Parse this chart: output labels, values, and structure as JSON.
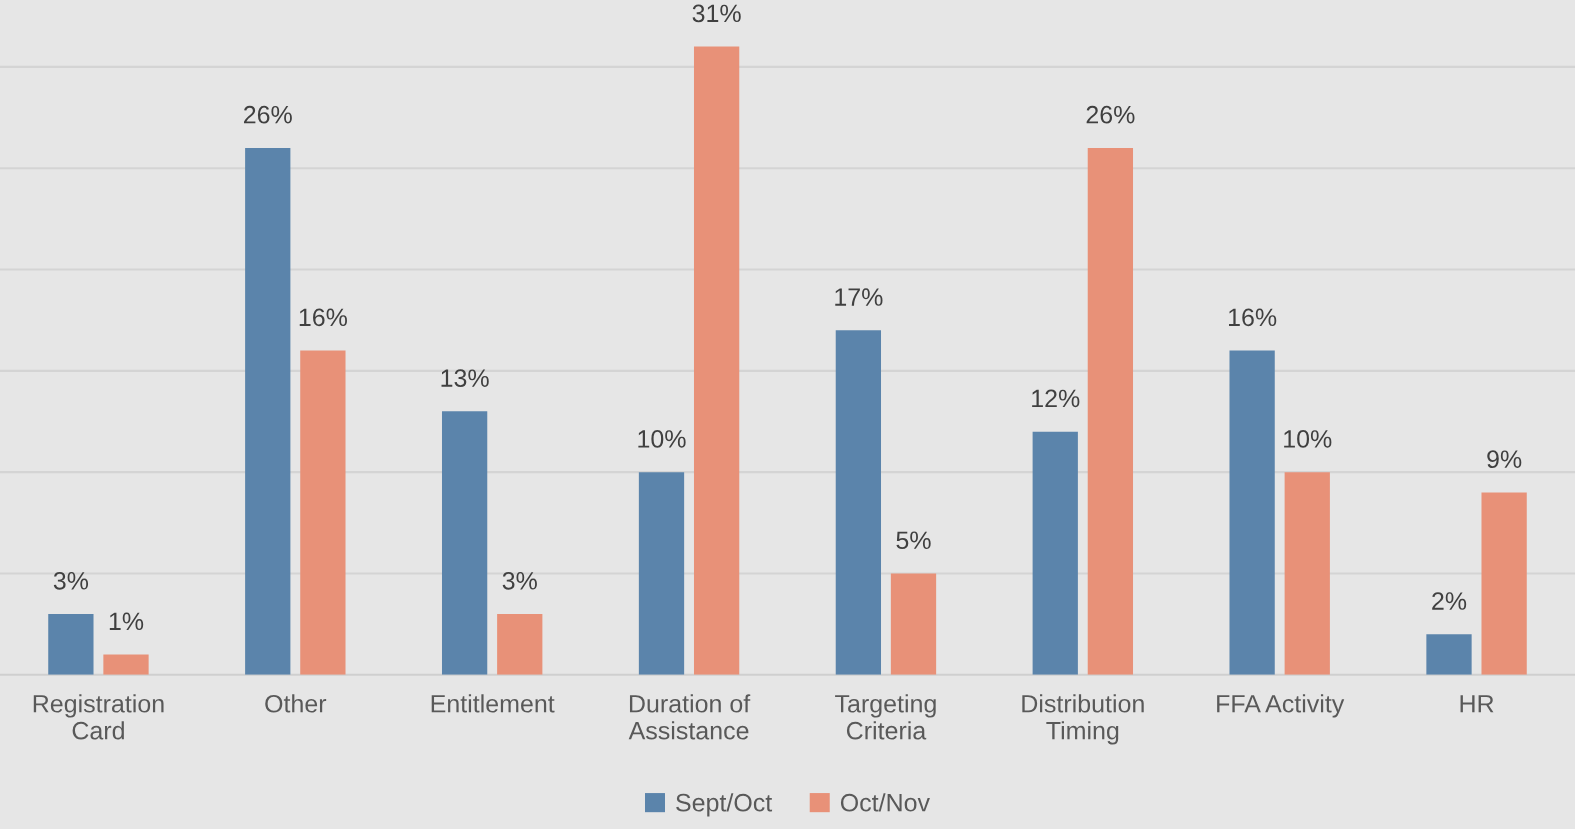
{
  "chart_data": {
    "type": "bar",
    "categories": [
      "Registration\nCard",
      "Other",
      "Entitlement",
      "Duration of\nAssistance",
      "Targeting\nCriteria",
      "Distribution\nTiming",
      "FFA Activity",
      "HR"
    ],
    "series": [
      {
        "name": "Sept/Oct",
        "color": "#5b84ab",
        "values": [
          3,
          26,
          13,
          10,
          17,
          12,
          16,
          2
        ],
        "value_labels": [
          "3%",
          "26%",
          "13%",
          "10%",
          "17%",
          "12%",
          "16%",
          "2%"
        ]
      },
      {
        "name": "Oct/Nov",
        "color": "#e89178",
        "values": [
          1,
          16,
          3,
          31,
          5,
          26,
          10,
          9
        ],
        "value_labels": [
          "1%",
          "16%",
          "3%",
          "31%",
          "5%",
          "26%",
          "10%",
          "9%"
        ]
      }
    ],
    "ylim": [
      0,
      33.3
    ],
    "yticks": [
      {
        "value": 5,
        "label": null
      },
      {
        "value": 10,
        "label": null
      },
      {
        "value": 15,
        "label": null
      },
      {
        "value": 20,
        "label": null
      },
      {
        "value": 25,
        "label": null
      },
      {
        "value": 30,
        "label": null
      }
    ],
    "grid": "y",
    "legend": "bottom",
    "tick_labels": "x"
  }
}
